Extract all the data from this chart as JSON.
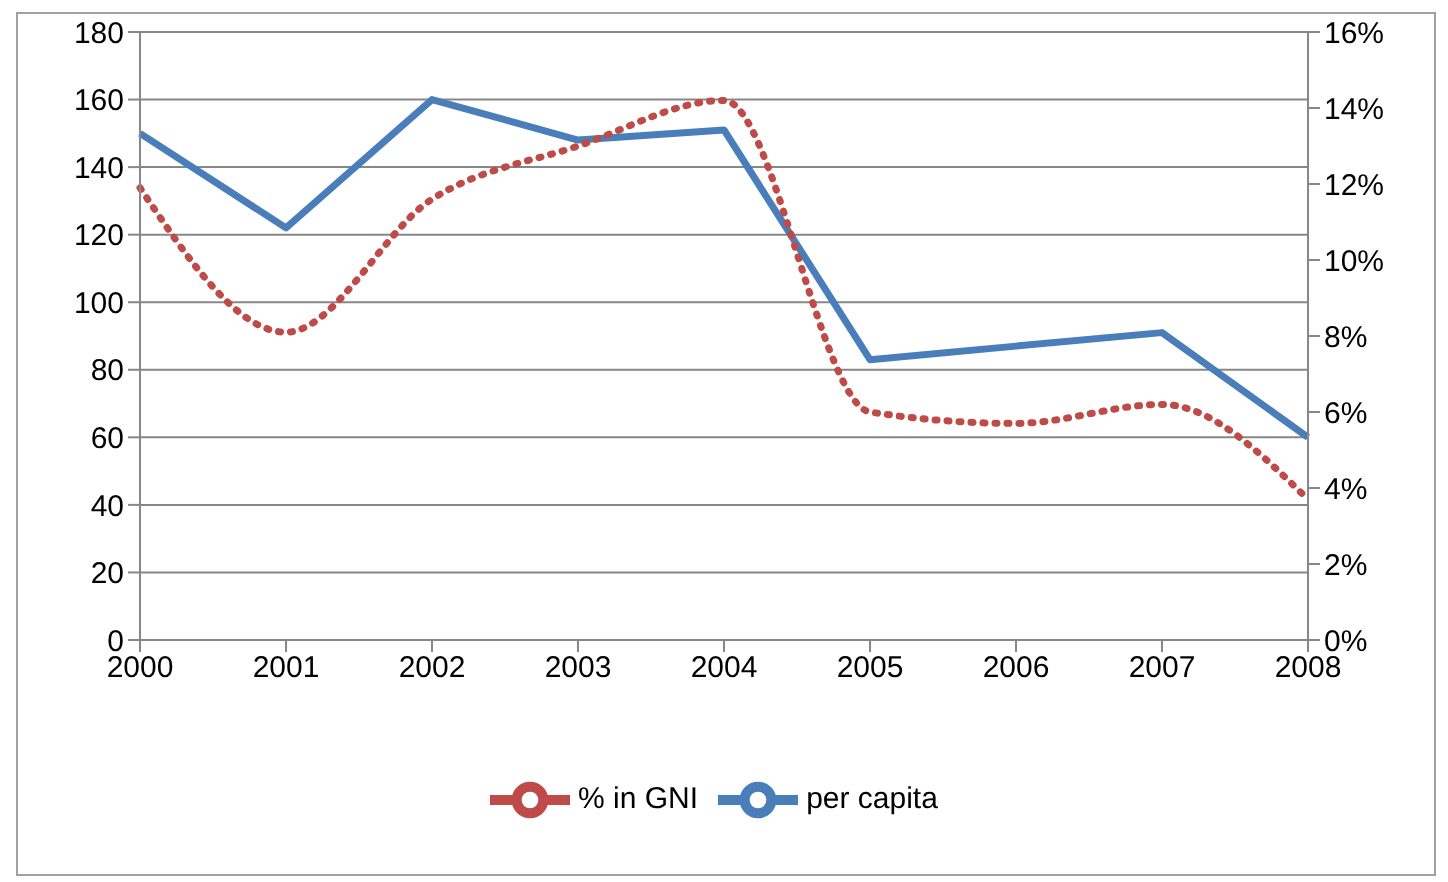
{
  "chart_data": {
    "type": "line",
    "categories": [
      "2000",
      "2001",
      "2002",
      "2003",
      "2004",
      "2005",
      "2006",
      "2007",
      "2008"
    ],
    "series": [
      {
        "name": "per capita",
        "color": "#4a7ebb",
        "values": [
          150,
          122,
          160,
          148,
          151,
          83,
          87,
          91,
          60
        ],
        "line_style": "solid"
      },
      {
        "name": "% in GNI",
        "color": "#be4b48",
        "values": [
          11.9,
          8.1,
          11.6,
          13.0,
          14.2,
          6.0,
          5.7,
          6.2,
          3.7
        ],
        "axis": "y2",
        "line_style": "dotted"
      }
    ],
    "ylim": [
      0,
      180
    ],
    "yticks": [
      0,
      20,
      40,
      60,
      80,
      100,
      120,
      140,
      160,
      180
    ],
    "y2lim": [
      0,
      16
    ],
    "y2ticks": [
      {
        "value": 0,
        "label": "0%"
      },
      {
        "value": 2,
        "label": "2%"
      },
      {
        "value": 4,
        "label": "4%"
      },
      {
        "value": 6,
        "label": "6%"
      },
      {
        "value": 8,
        "label": "8%"
      },
      {
        "value": 10,
        "label": "10%"
      },
      {
        "value": 12,
        "label": "12%"
      },
      {
        "value": 14,
        "label": "14%"
      },
      {
        "value": 16,
        "label": "16%"
      }
    ],
    "grid": "y",
    "legend": "bottom",
    "marker": "none"
  }
}
